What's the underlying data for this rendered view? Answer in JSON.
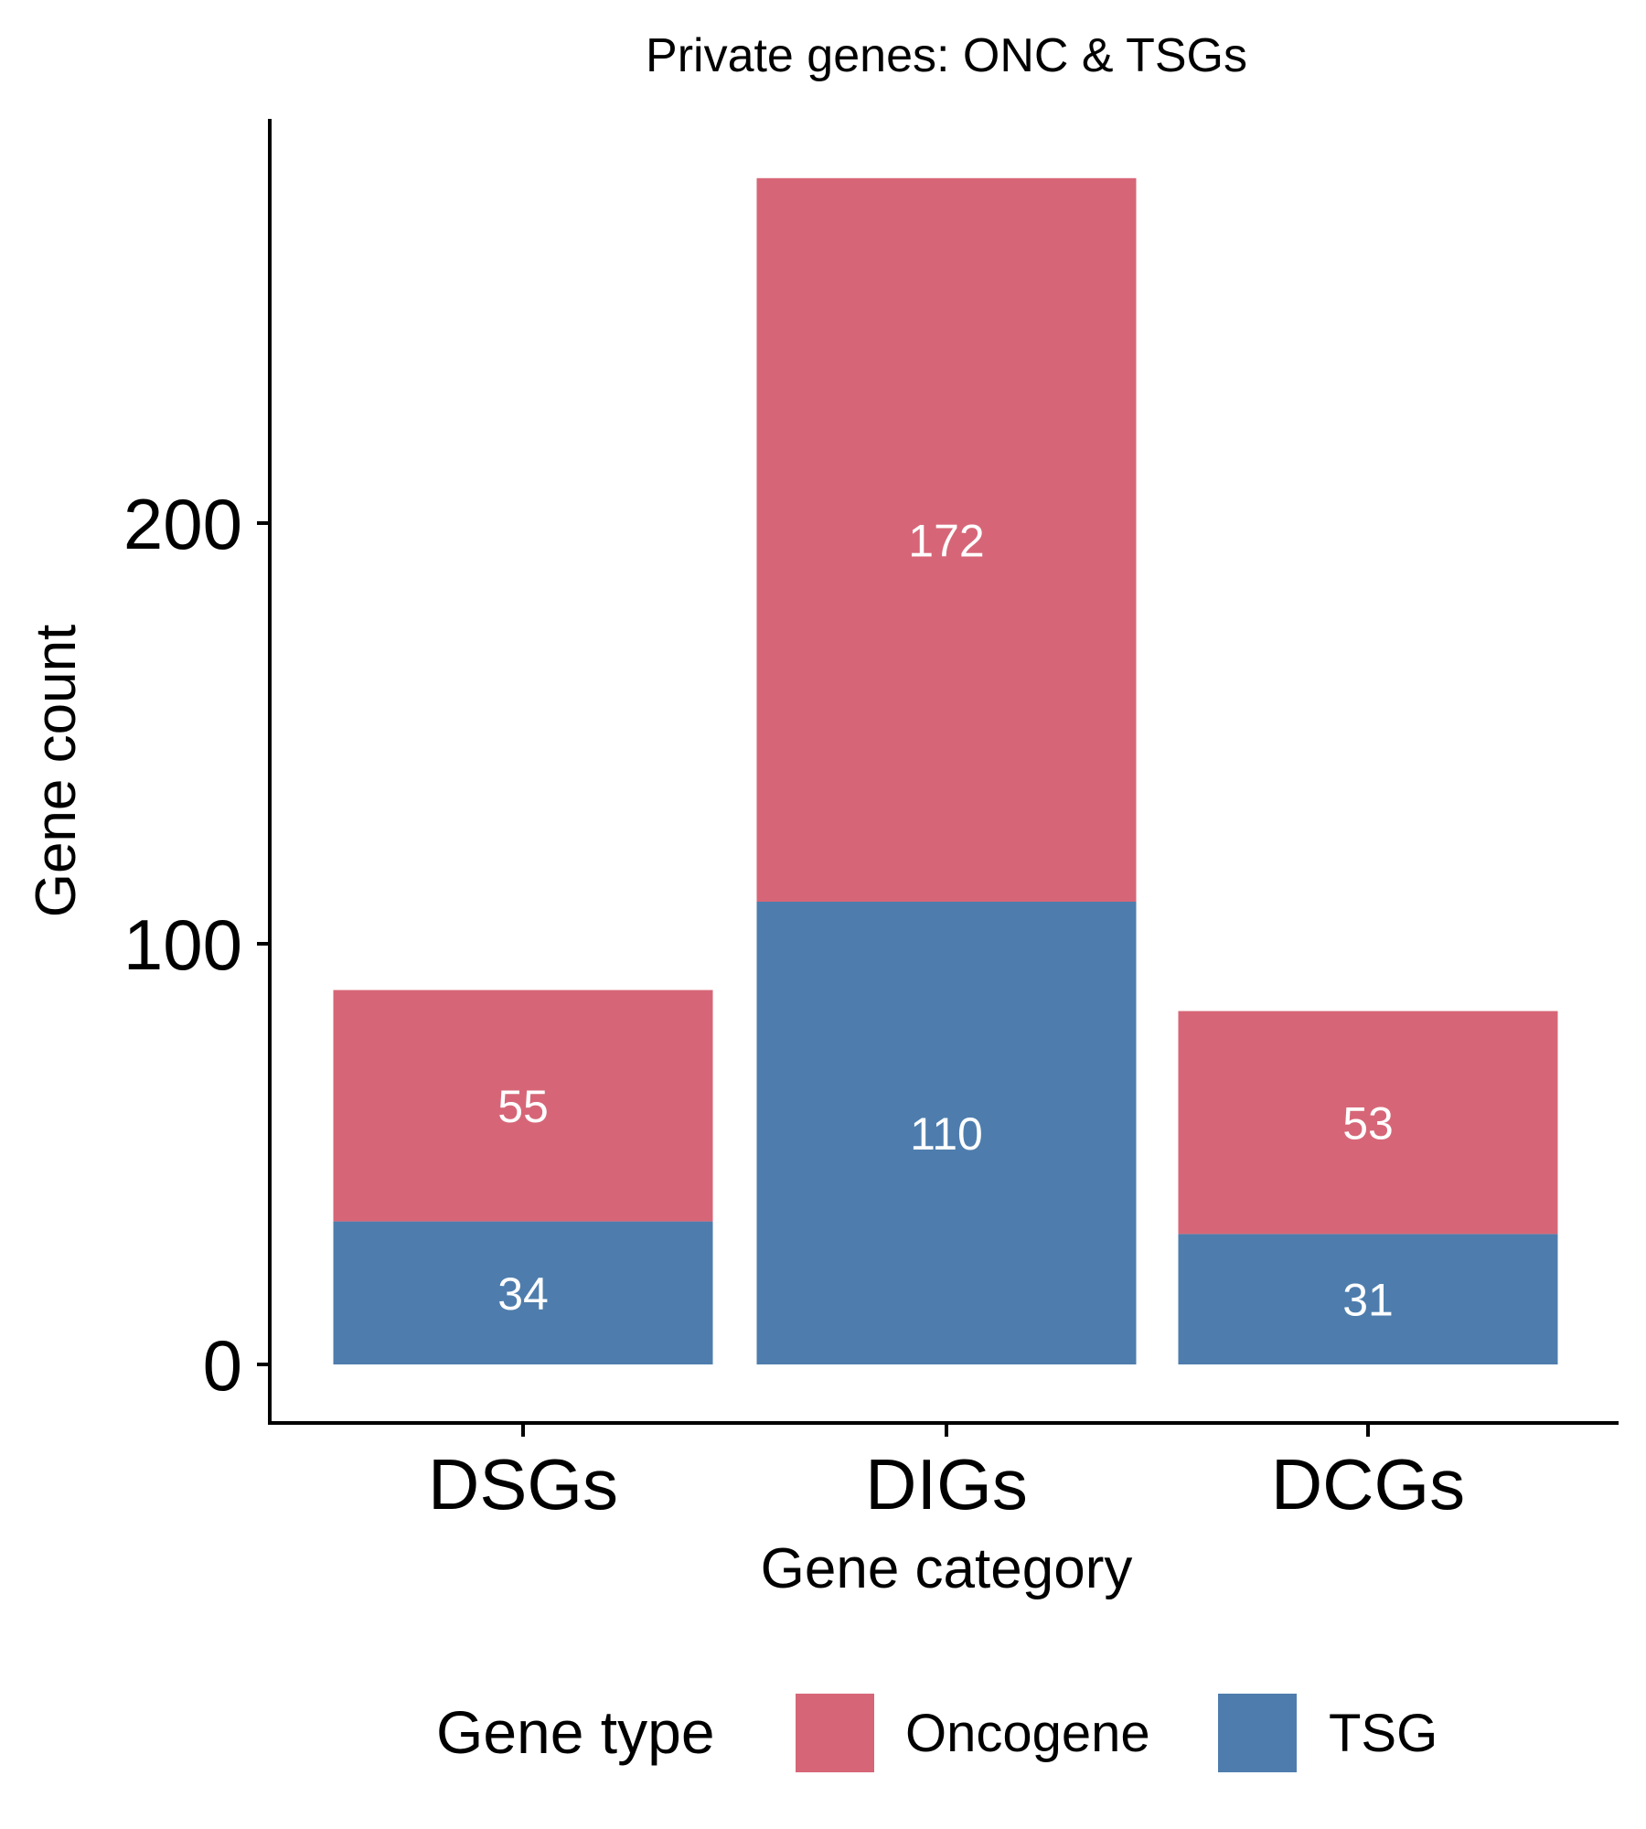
{
  "chart_data": {
    "type": "bar",
    "stacked": true,
    "title": "Private genes: ONC & TSGs",
    "xlabel": "Gene category",
    "ylabel": "Gene count",
    "categories": [
      "DSGs",
      "DIGs",
      "DCGs"
    ],
    "series": [
      {
        "name": "TSG",
        "color": "#4e7dad",
        "values": [
          34,
          110,
          31
        ]
      },
      {
        "name": "Oncogene",
        "color": "#d66677",
        "values": [
          55,
          172,
          53
        ]
      }
    ],
    "ylim": [
      0,
      296
    ],
    "yticks": [
      0,
      100,
      200
    ],
    "grid": false,
    "legend": {
      "title": "Gene type",
      "position": "bottom",
      "entries": [
        {
          "label": "Oncogene",
          "color": "#d66677"
        },
        {
          "label": "TSG",
          "color": "#4e7dad"
        }
      ]
    }
  }
}
